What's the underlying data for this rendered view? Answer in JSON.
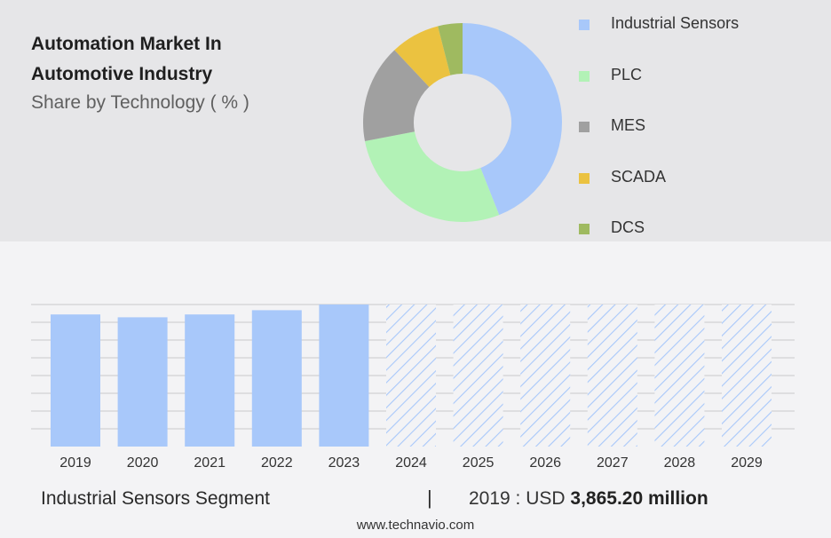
{
  "title_line1": "Automation Market In",
  "title_line2": "Automotive Industry",
  "subtitle": "Share by Technology ( % )",
  "footer": {
    "segment": "Industrial Sensors Segment",
    "divider": "|",
    "year_label": "2019 : USD",
    "value": "3,865.20 million"
  },
  "source": "www.technavio.com",
  "chart_data": [
    {
      "type": "pie",
      "variant": "donut",
      "categories": [
        "Industrial Sensors",
        "PLC",
        "MES",
        "SCADA",
        "DCS"
      ],
      "values": [
        44,
        28,
        16,
        8,
        4
      ],
      "colors": [
        "#a8c8fa",
        "#b2f2b6",
        "#a0a0a0",
        "#ebc240",
        "#9fba60"
      ],
      "legend": "right"
    },
    {
      "type": "bar",
      "categories": [
        "2019",
        "2020",
        "2021",
        "2022",
        "2023",
        "2024",
        "2025",
        "2026",
        "2027",
        "2028",
        "2029"
      ],
      "values": [
        93,
        91,
        93,
        96,
        100,
        100,
        100,
        100,
        100,
        100,
        100
      ],
      "forecast_from": "2024",
      "color": "#a8c8fa",
      "grid": true
    }
  ]
}
